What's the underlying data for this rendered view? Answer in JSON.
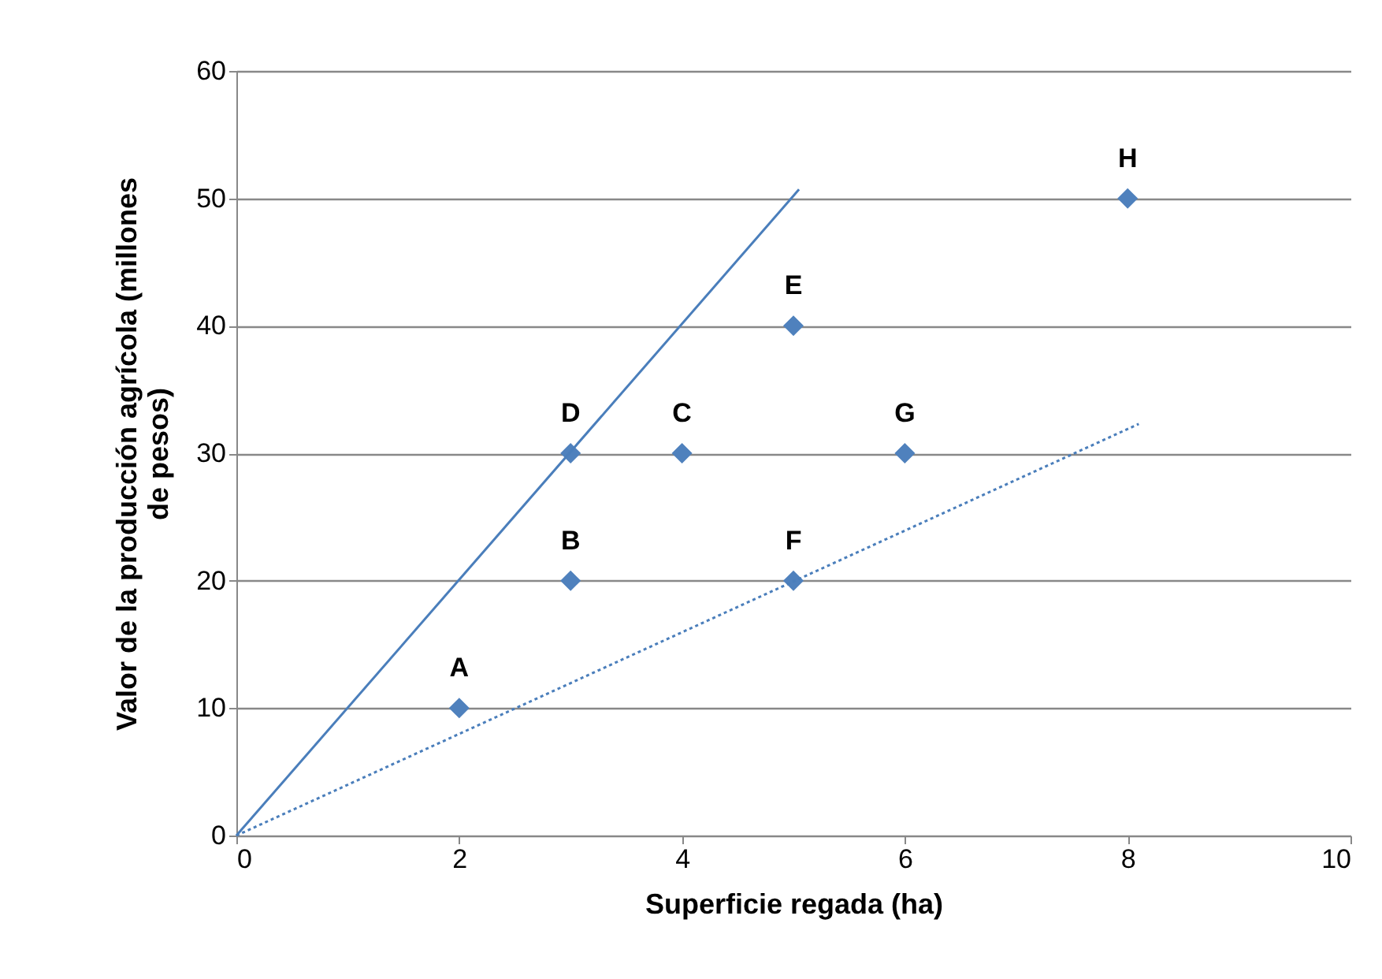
{
  "chart_data": {
    "type": "scatter",
    "xlabel": "Superficie regada (ha)",
    "ylabel": "Valor de la producción agrícola (millones de pesos)",
    "xlim": [
      0,
      10
    ],
    "ylim": [
      0,
      60
    ],
    "xticks": [
      0,
      2,
      4,
      6,
      8,
      10
    ],
    "yticks": [
      0,
      10,
      20,
      30,
      40,
      50,
      60
    ],
    "grid": "y",
    "marker": "diamond",
    "series": [
      {
        "color": "#4f81bd",
        "x": [
          2,
          3,
          4,
          3,
          5,
          5,
          6,
          8
        ],
        "values": [
          10,
          20,
          30,
          30,
          40,
          20,
          30,
          50
        ],
        "value_labels": [
          "A",
          "B",
          "C",
          "D",
          "E",
          "F",
          "G",
          "H"
        ]
      },
      {
        "type": "line",
        "color": "#4a7ebb",
        "line_style": "solid",
        "marker": "none",
        "x": [
          0,
          5.05
        ],
        "values": [
          0,
          50.7
        ]
      },
      {
        "type": "line",
        "color": "#4a7ebb",
        "line_style": "dotted",
        "marker": "none",
        "x": [
          0,
          8.1
        ],
        "values": [
          0,
          32.3
        ]
      }
    ]
  }
}
